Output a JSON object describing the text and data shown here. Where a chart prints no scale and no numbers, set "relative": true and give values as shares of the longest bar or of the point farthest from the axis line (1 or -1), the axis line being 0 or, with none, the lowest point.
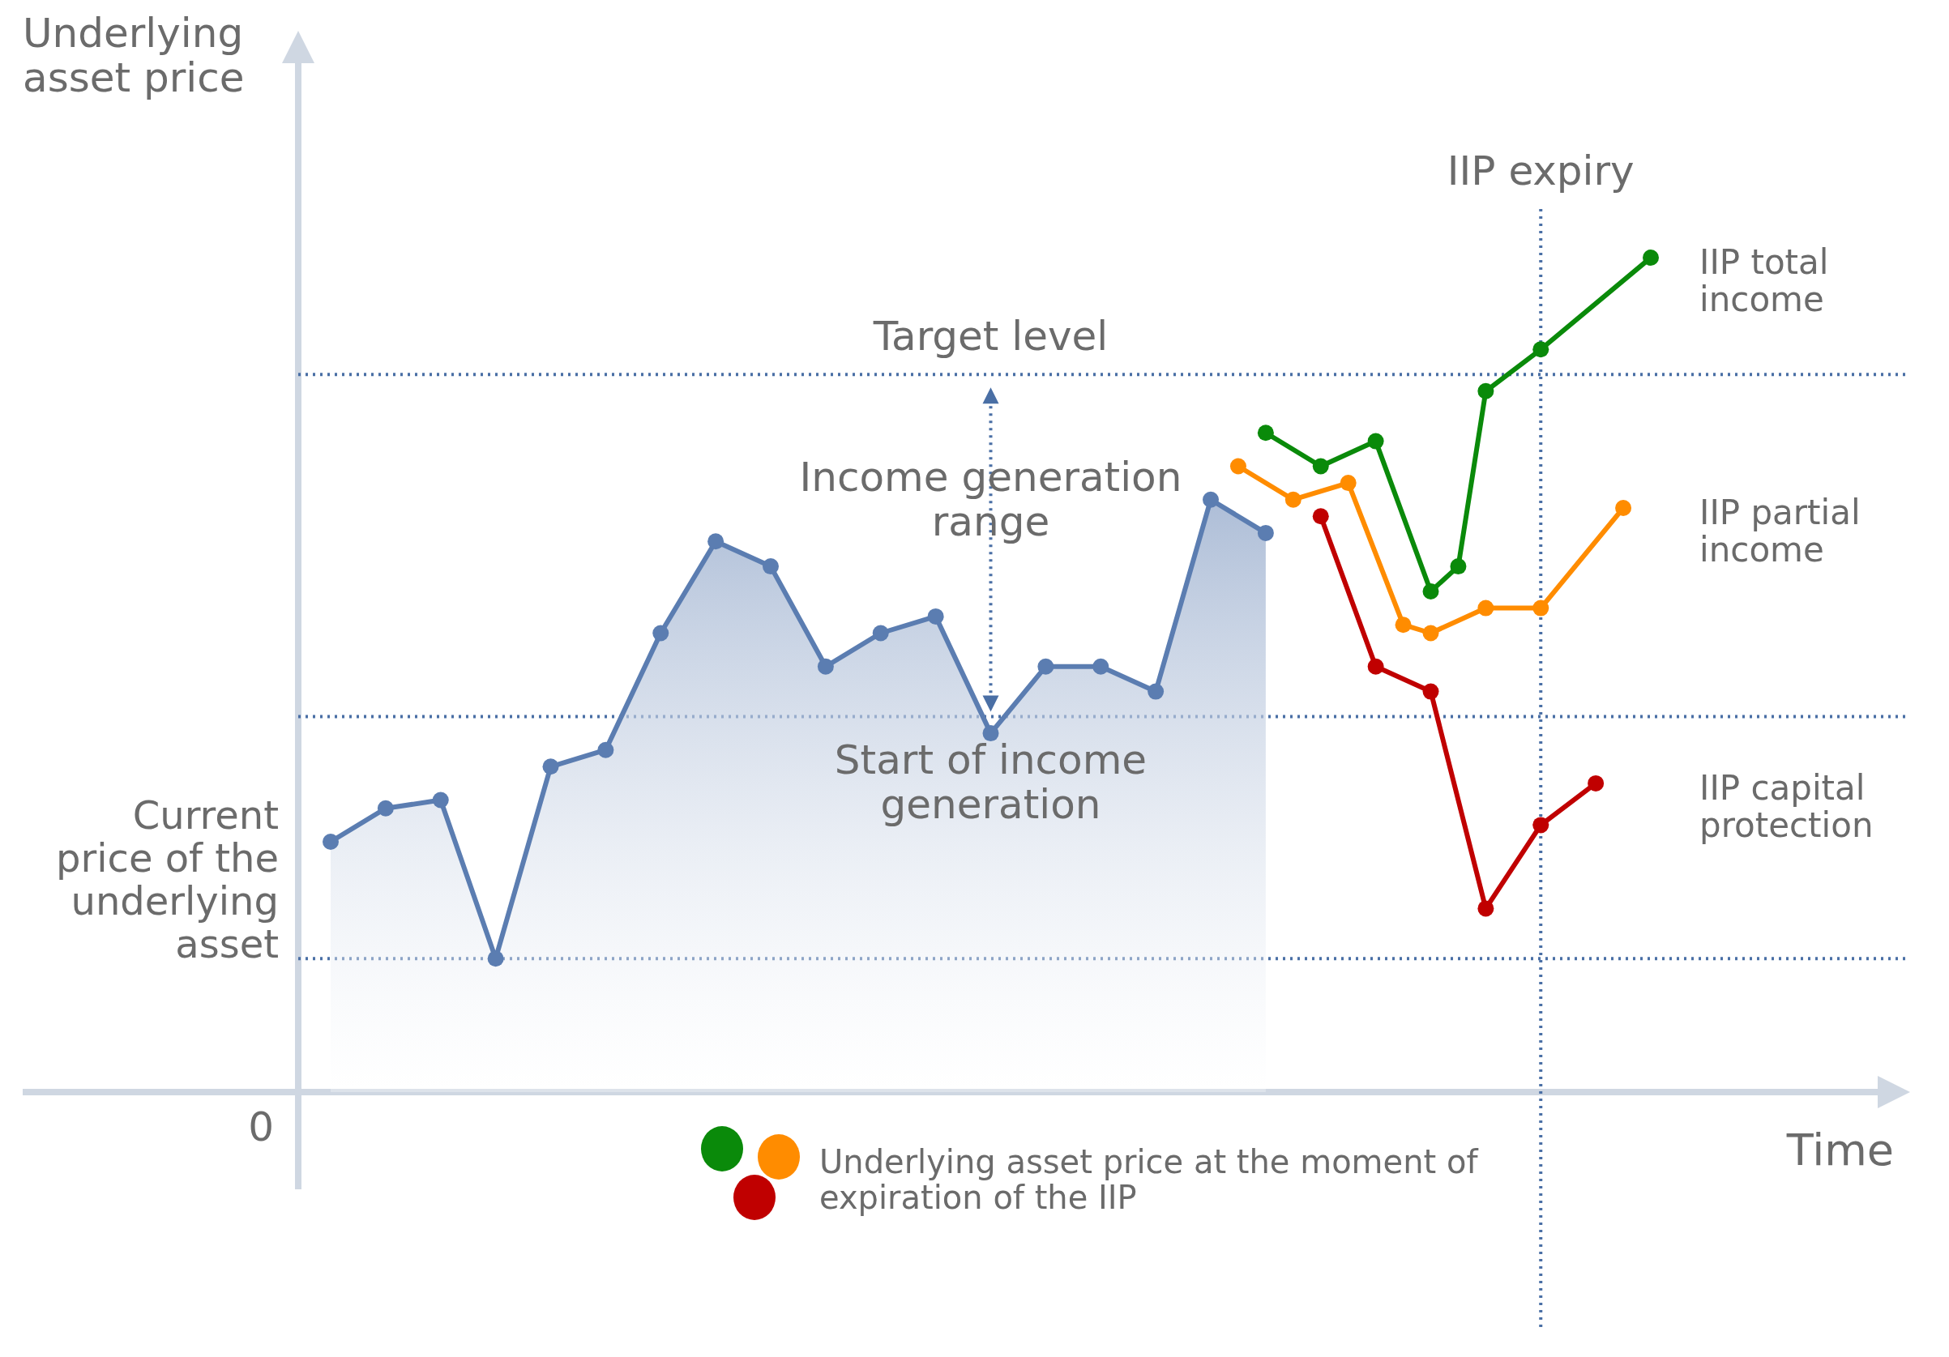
{
  "chart_data": {
    "type": "line",
    "relative": true,
    "xlabel": "Time",
    "ylabel": "Underlying asset price",
    "marker": "circle",
    "categories": [
      null,
      null,
      null,
      null,
      null,
      null,
      null,
      null,
      null,
      null,
      null,
      null,
      null,
      null,
      null,
      null,
      null,
      null,
      null,
      null,
      null,
      null,
      null,
      null,
      null,
      null,
      null,
      null,
      null,
      null,
      null,
      null,
      null,
      null,
      null,
      null,
      null,
      null,
      null,
      null,
      null,
      null,
      null,
      null,
      null,
      null,
      null,
      null,
      null
    ],
    "series": [
      {
        "type": "area",
        "color": "#5b7db1",
        "values": [
          0.3,
          null,
          0.34,
          null,
          0.35,
          null,
          0.16,
          null,
          0.39,
          null,
          0.41,
          null,
          0.55,
          null,
          0.66,
          null,
          0.63,
          null,
          0.51,
          null,
          0.55,
          null,
          0.57,
          null,
          0.43,
          null,
          0.51,
          null,
          0.51,
          null,
          0.48,
          null,
          0.71,
          null,
          0.67,
          null,
          null,
          null,
          null,
          null,
          null,
          null,
          null,
          null,
          null,
          null,
          null,
          null,
          null
        ]
      },
      {
        "color": "#0a8a0a",
        "values": [
          null,
          null,
          null,
          null,
          null,
          null,
          null,
          null,
          null,
          null,
          null,
          null,
          null,
          null,
          null,
          null,
          null,
          null,
          null,
          null,
          null,
          null,
          null,
          null,
          null,
          null,
          null,
          null,
          null,
          null,
          null,
          null,
          null,
          null,
          0.79,
          null,
          0.75,
          null,
          0.78,
          null,
          0.6,
          0.63,
          0.84,
          null,
          0.89,
          null,
          null,
          null,
          1
        ]
      },
      {
        "color": "#ff8c00",
        "values": [
          null,
          null,
          null,
          null,
          null,
          null,
          null,
          null,
          null,
          null,
          null,
          null,
          null,
          null,
          null,
          null,
          null,
          null,
          null,
          null,
          null,
          null,
          null,
          null,
          null,
          null,
          null,
          null,
          null,
          null,
          null,
          null,
          null,
          0.75,
          null,
          0.71,
          null,
          0.73,
          null,
          0.56,
          0.55,
          null,
          0.58,
          null,
          0.58,
          null,
          null,
          0.7,
          null
        ]
      },
      {
        "color": "#c00000",
        "values": [
          null,
          null,
          null,
          null,
          null,
          null,
          null,
          null,
          null,
          null,
          null,
          null,
          null,
          null,
          null,
          null,
          null,
          null,
          null,
          null,
          null,
          null,
          null,
          null,
          null,
          null,
          null,
          null,
          null,
          null,
          null,
          null,
          null,
          null,
          null,
          null,
          0.69,
          null,
          0.51,
          null,
          0.48,
          null,
          0.22,
          null,
          0.32,
          null,
          0.37,
          null,
          null
        ]
      }
    ],
    "ref_lines": [
      {
        "axis": "y",
        "value": 0.86,
        "label": "Target level",
        "color": "#4a6fa5",
        "line_style": "dotted"
      },
      {
        "axis": "y",
        "value": 0.45,
        "label": "Start of income generation",
        "color": "#4a6fa5",
        "line_style": "dotted"
      },
      {
        "axis": "y",
        "value": 0.16,
        "label": "Current price of the underlying asset",
        "color": "#4a6fa5",
        "line_style": "dotted"
      }
    ],
    "annotations": [
      "IIP expiry",
      "Income generation range",
      "IIP total income",
      "IIP partial income",
      "IIP capital protection",
      "Underlying asset price at the moment of expiration of the IIP",
      "0"
    ]
  }
}
